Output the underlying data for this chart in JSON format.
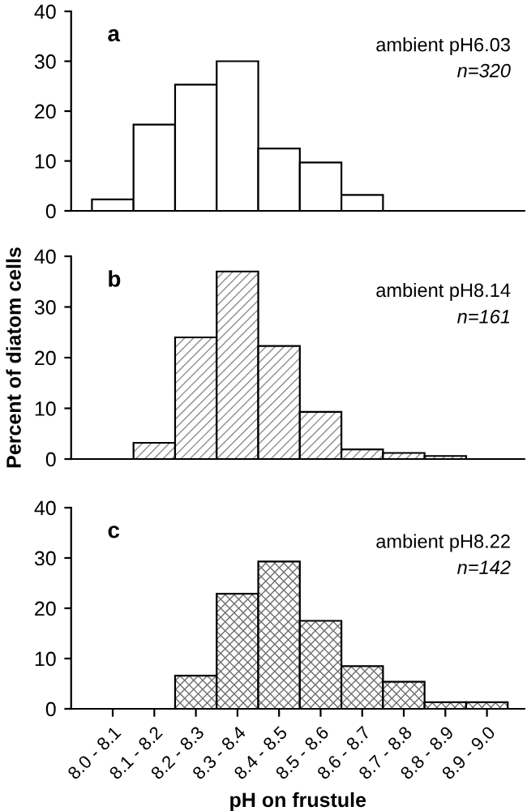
{
  "chart_data": [
    {
      "type": "bar",
      "categories": [
        null,
        null,
        null,
        null,
        null,
        null,
        null,
        null,
        null,
        null
      ],
      "values": [
        2.3,
        17.3,
        25.3,
        30,
        12.5,
        9.7,
        3.2,
        null,
        null,
        null
      ],
      "color": "#ffffff",
      "ylim": [
        0,
        40
      ],
      "yticks": [
        0,
        10,
        20,
        30,
        40
      ],
      "tick_labels": "y",
      "grid": false,
      "annotations": [
        "a",
        "ambient pH6.03",
        "n=320"
      ]
    },
    {
      "type": "bar",
      "categories": [
        null,
        null,
        null,
        null,
        null,
        null,
        null,
        null,
        null,
        null
      ],
      "values": [
        null,
        3.2,
        24,
        37,
        22.3,
        9.3,
        1.9,
        1.2,
        0.6,
        null
      ],
      "color": "#8c8c8c",
      "ylim": [
        0,
        40
      ],
      "yticks": [
        0,
        10,
        20,
        30,
        40
      ],
      "tick_labels": "y",
      "grid": false,
      "ylabel": "Percent of diatom cells",
      "annotations": [
        "b",
        "ambient pH8.14",
        "n=161"
      ]
    },
    {
      "type": "bar",
      "categories": [
        "8.0 - 8.1",
        "8.1 - 8.2",
        "8.2 - 8.3",
        "8.3 - 8.4",
        "8.4 - 8.5",
        "8.5 - 8.6",
        "8.6 - 8.7",
        "8.7 - 8.8",
        "8.8 - 8.9",
        "8.9 - 9.0"
      ],
      "values": [
        null,
        null,
        6.6,
        22.9,
        29.3,
        17.5,
        8.5,
        5.4,
        1.3,
        1.3
      ],
      "color": "#6e6e6e",
      "ylim": [
        0,
        40
      ],
      "yticks": [
        0,
        10,
        20,
        30,
        40
      ],
      "grid": false,
      "xlabel": "pH on frustule",
      "annotations": [
        "c",
        "ambient pH8.22",
        "n=142"
      ]
    }
  ]
}
